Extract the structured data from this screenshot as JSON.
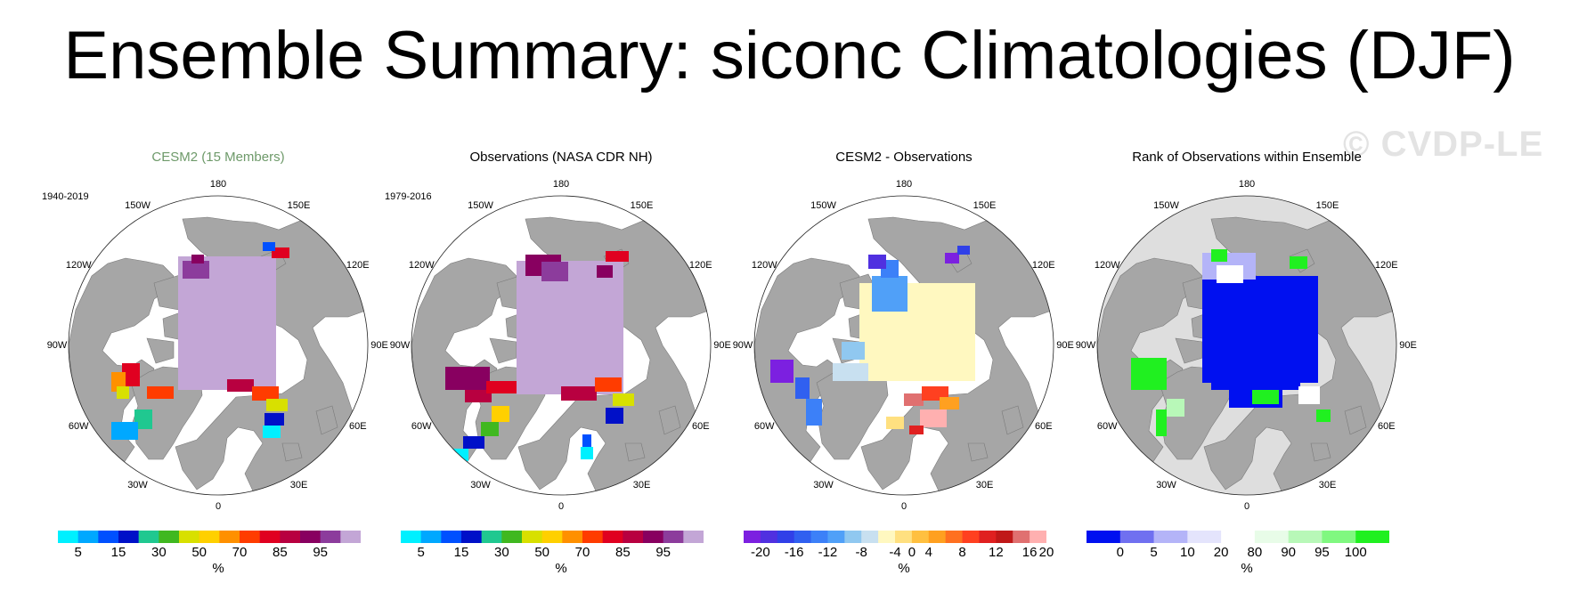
{
  "title": "Ensemble Summary: siconc Climatologies (DJF)",
  "watermark": "© CVDP-LE",
  "colors": {
    "land": "#a6a6a6",
    "ocean": "#ffffff",
    "conc_scale": [
      "#00f0ff",
      "#00a8ff",
      "#0050ff",
      "#0010c8",
      "#20c890",
      "#40b820",
      "#d8e000",
      "#ffd000",
      "#ff9000",
      "#ff3c00",
      "#e00020",
      "#b80040",
      "#880060",
      "#8c3c9c",
      "#c3a6d6"
    ],
    "diff_scale": [
      "#7c20e0",
      "#5030e0",
      "#3040e8",
      "#3060f0",
      "#3c80f8",
      "#50a0f8",
      "#90c8f0",
      "#c8e0f0",
      "#fff8c0",
      "#ffe080",
      "#ffc040",
      "#ffa020",
      "#ff7020",
      "#ff4020",
      "#e02020",
      "#c01818",
      "#e07070",
      "#ffb0b0"
    ],
    "rank_scale": [
      "#0010f0",
      "#7070f0",
      "#b4b4f8",
      "#e4e4fc",
      "#ffffff",
      "#e8fce8",
      "#b8f8b8",
      "#80f880",
      "#20f020"
    ]
  },
  "lon_labels": [
    "180",
    "150W",
    "150E",
    "120W",
    "120E",
    "90W",
    "90E",
    "60W",
    "60E",
    "30W",
    "30E",
    "0"
  ],
  "panels": [
    {
      "title": "CESM2 (15 Members)",
      "period": "1940-2019",
      "ticks": [
        "5",
        "15",
        "30",
        "50",
        "70",
        "85",
        "95"
      ],
      "unit": "%"
    },
    {
      "title": "Observations (NASA CDR NH)",
      "period": "1979-2016",
      "ticks": [
        "5",
        "15",
        "30",
        "50",
        "70",
        "85",
        "95"
      ],
      "unit": "%"
    },
    {
      "title": "CESM2 - Observations",
      "period": "",
      "ticks": [
        "-20",
        "-16",
        "-12",
        "-8",
        "-4",
        "0",
        "4",
        "8",
        "12",
        "16",
        "20"
      ],
      "unit": "%"
    },
    {
      "title": "Rank of Observations within Ensemble",
      "period": "",
      "ticks": [
        "0",
        "5",
        "10",
        "20",
        "80",
        "90",
        "95",
        "100"
      ],
      "unit": "%"
    }
  ]
}
